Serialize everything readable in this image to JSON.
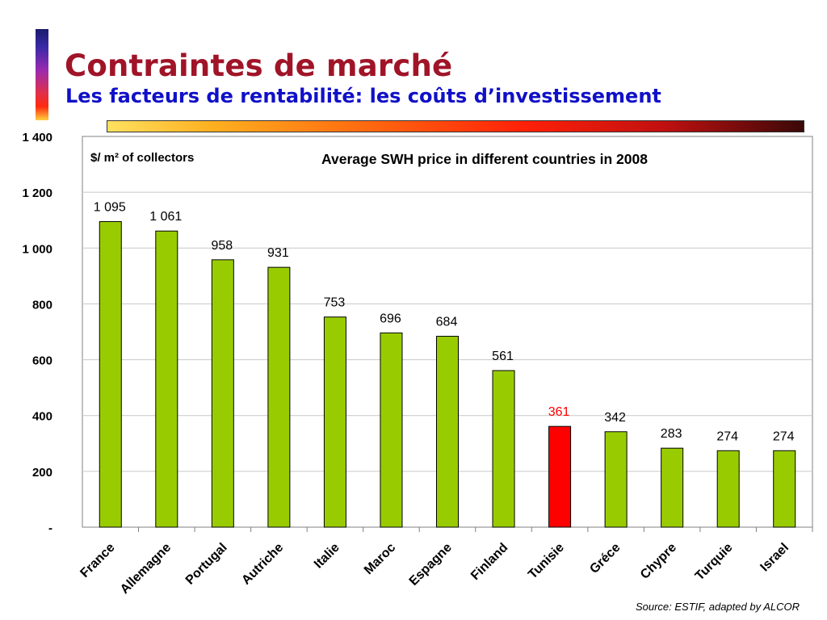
{
  "header": {
    "title": "Contraintes de marché",
    "subtitle": "Les facteurs de rentabilité: les coûts d’investissement"
  },
  "source": "Source: ESTIF, adapted by ALCOR",
  "colors": {
    "bar_default": "#99cc00",
    "bar_highlight": "#ff0000",
    "label_highlight": "#ff0000",
    "title": "#a01428",
    "subtitle": "#1010c8"
  },
  "chart_data": {
    "type": "bar",
    "title": "Average SWH price in different countries in 2008",
    "ylabel": "$/ m² of collectors",
    "xlabel": "",
    "ylim": [
      0,
      1400
    ],
    "yticks": [
      0,
      200,
      400,
      600,
      800,
      1000,
      1200,
      1400
    ],
    "ytick_labels": [
      "-",
      "200",
      "400",
      "600",
      "800",
      "1 000",
      "1 200",
      "1 400"
    ],
    "grid": true,
    "categories": [
      "France",
      "Allemagne",
      "Portugal",
      "Autriche",
      "Italie",
      "Maroc",
      "Espagne",
      "Finland",
      "Tunisie",
      "Gréce",
      "Chypre",
      "Turquie",
      "Israel"
    ],
    "values": [
      1095,
      1061,
      958,
      931,
      753,
      696,
      684,
      561,
      361,
      342,
      283,
      274,
      274
    ],
    "value_labels": [
      "1 095",
      "1 061",
      "958",
      "931",
      "753",
      "696",
      "684",
      "561",
      "361",
      "342",
      "283",
      "274",
      "274"
    ],
    "highlight": "Tunisie"
  }
}
